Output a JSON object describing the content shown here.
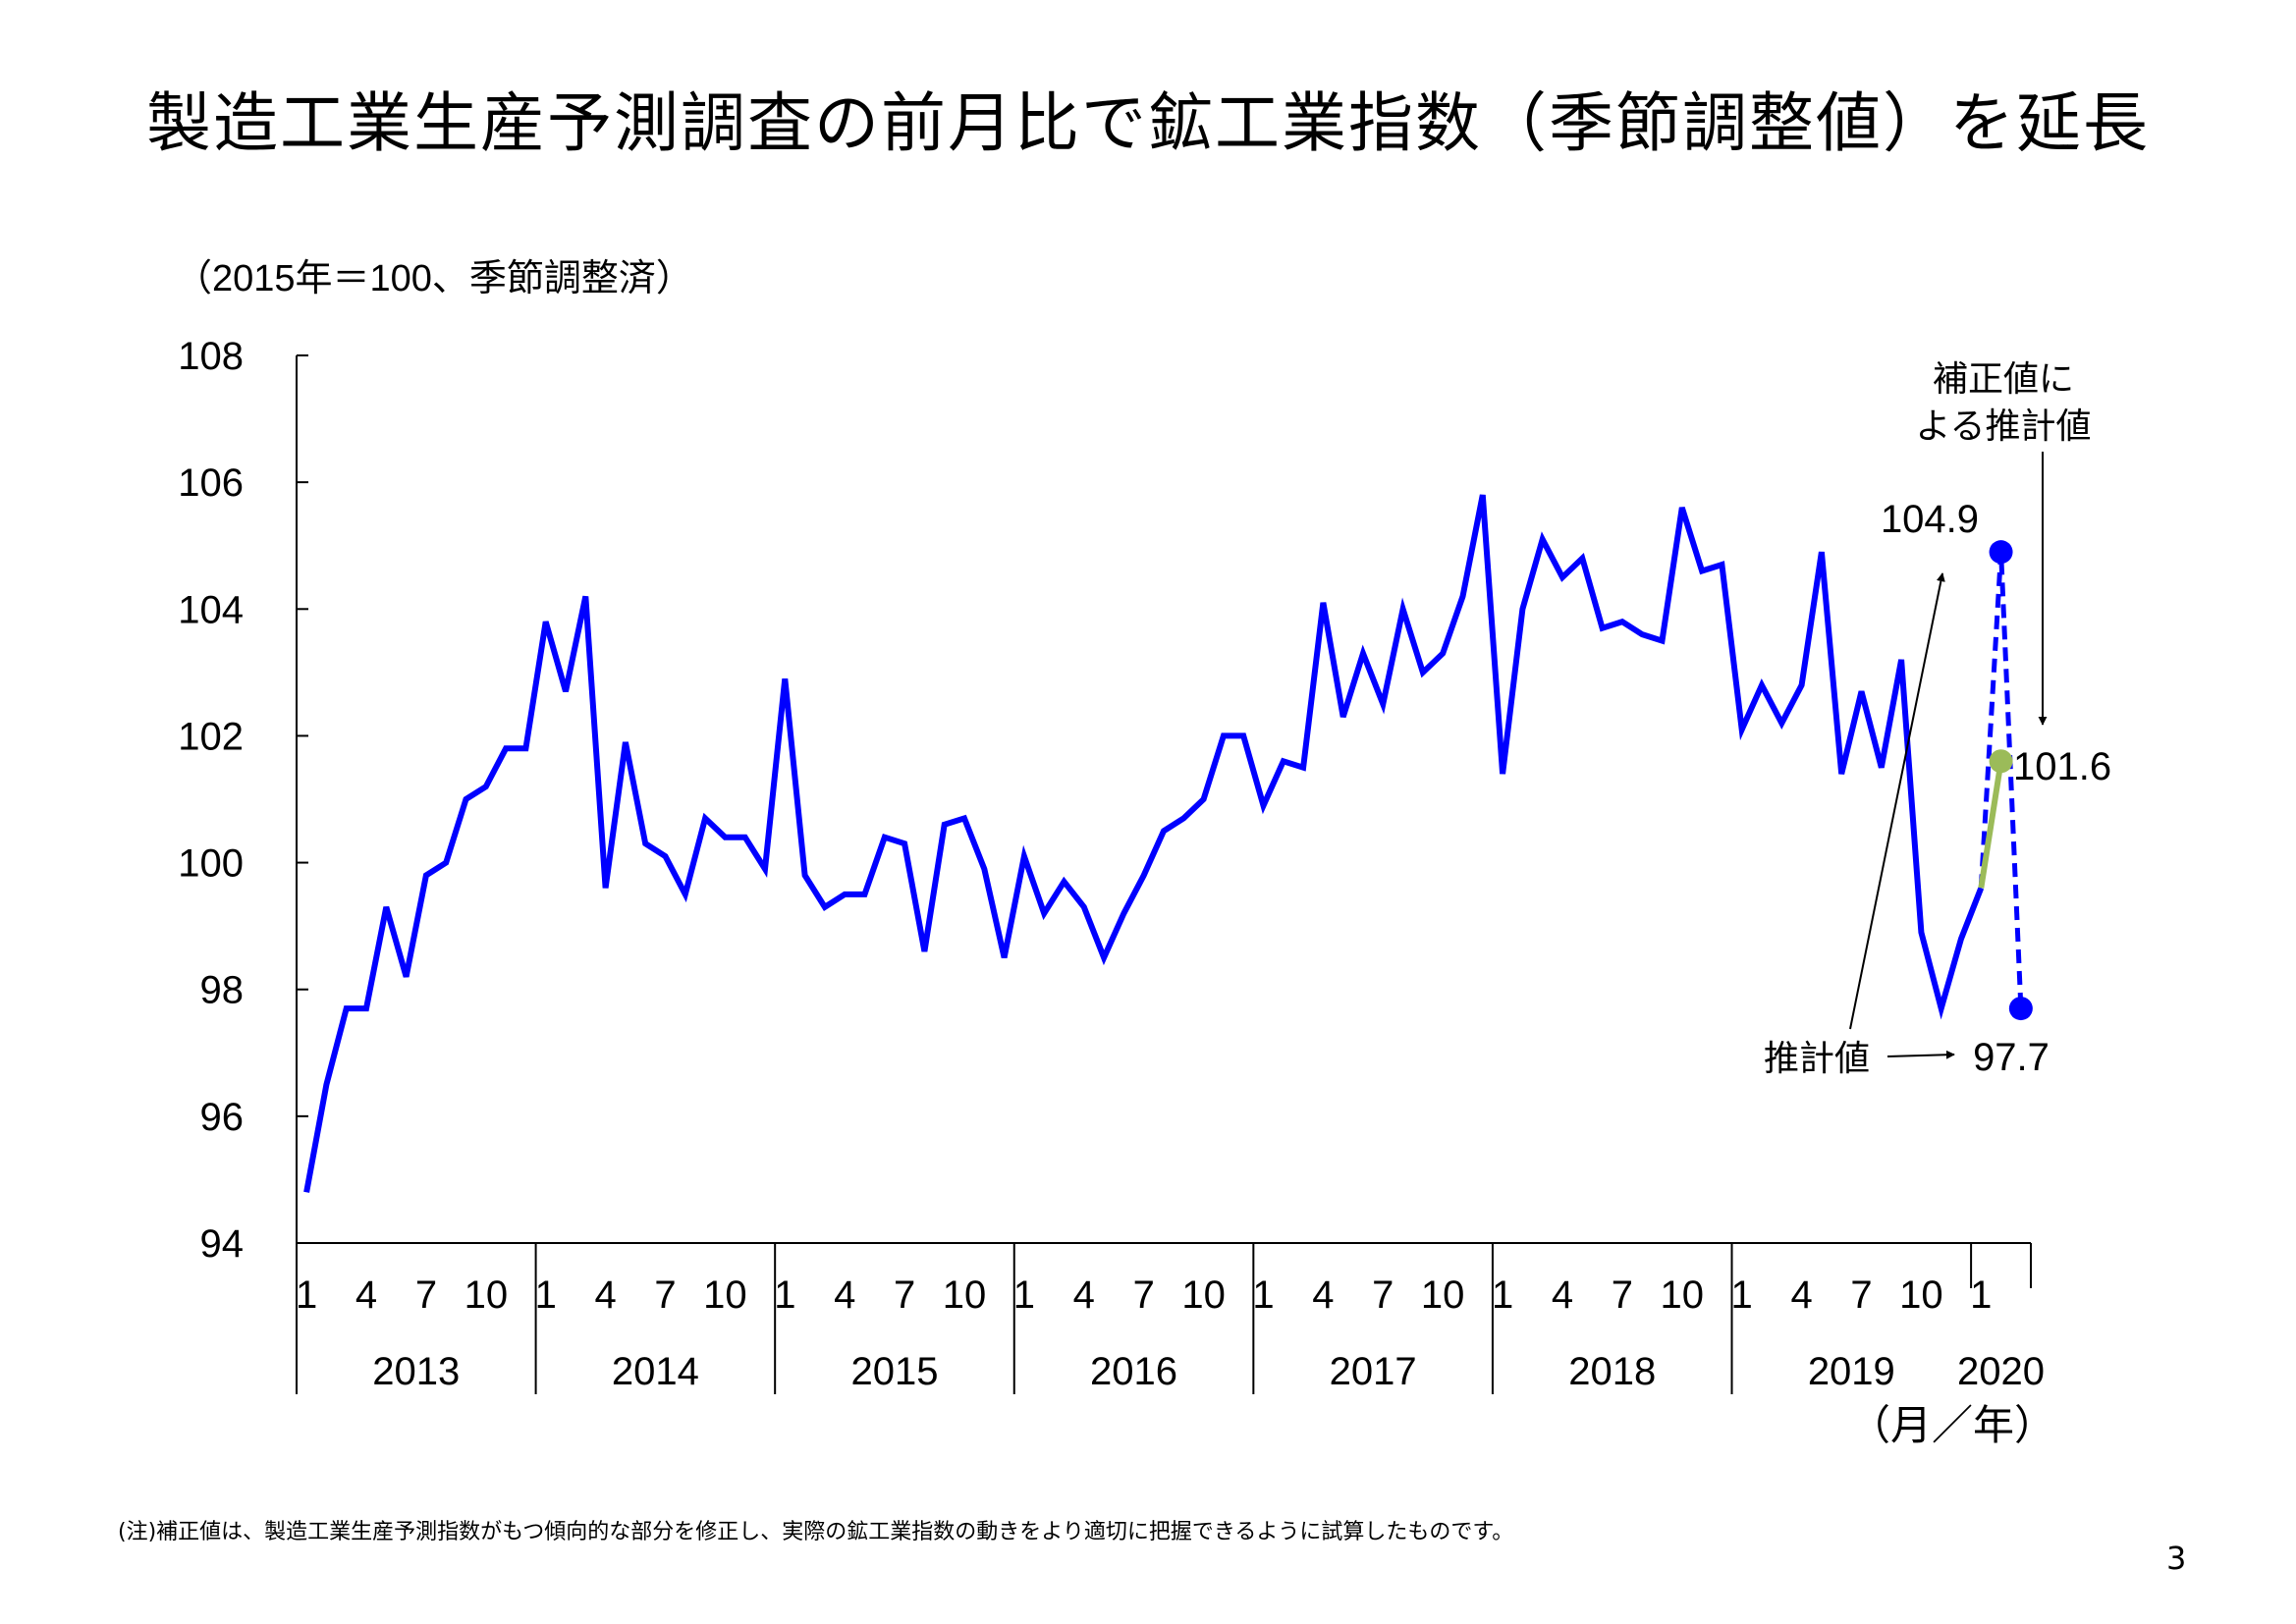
{
  "title": "製造工業生産予測調査の前月比で鉱工業指数（季節調整値）を延長",
  "footnote": "(注)補正値は、製造工業生産予測指数がもつ傾向的な部分を修正し、実際の鉱工業指数の動きをより適切に把握できるように試算したものです。",
  "page_number": "3",
  "chart_data": {
    "type": "line",
    "unit_label": "（2015年＝100、季節調整済）",
    "xlabel": "（月／年）",
    "ylim": [
      94,
      108
    ],
    "yticks": [
      94,
      96,
      98,
      100,
      102,
      104,
      106,
      108
    ],
    "month_tick_labels": [
      "1",
      "4",
      "7",
      "10"
    ],
    "years": [
      "2013",
      "2014",
      "2015",
      "2016",
      "2017",
      "2018",
      "2019",
      "2020"
    ],
    "grid": false,
    "colors": {
      "actual": "#0000ff",
      "forecast": "#0000ff",
      "corrected": "#9bbb59"
    },
    "series": [
      {
        "role": "actual",
        "start": "2013-01",
        "values": [
          94.8,
          96.5,
          97.7,
          97.7,
          99.3,
          98.2,
          99.8,
          100.0,
          101.0,
          101.2,
          101.8,
          101.8,
          103.8,
          102.7,
          104.2,
          99.6,
          101.9,
          100.3,
          100.1,
          99.5,
          100.7,
          100.4,
          100.4,
          99.9,
          102.9,
          99.8,
          99.3,
          99.5,
          99.5,
          100.4,
          100.3,
          98.6,
          100.6,
          100.7,
          99.9,
          98.5,
          100.1,
          99.2,
          99.7,
          99.3,
          98.5,
          99.2,
          99.8,
          100.5,
          100.7,
          101.0,
          102.0,
          102.0,
          100.9,
          101.6,
          101.5,
          104.1,
          102.3,
          103.3,
          102.5,
          104.0,
          103.0,
          103.3,
          104.2,
          105.8,
          101.4,
          104.0,
          105.1,
          104.5,
          104.8,
          103.7,
          103.8,
          103.6,
          103.5,
          105.6,
          104.6,
          104.7,
          102.1,
          102.8,
          102.2,
          102.8,
          104.9,
          101.4,
          102.7,
          101.5,
          103.2,
          98.9,
          97.7,
          98.8,
          99.6
        ]
      },
      {
        "role": "forecast",
        "points": [
          {
            "x": "2020-01",
            "y": 99.6
          },
          {
            "x": "2020-02",
            "y": 104.9
          },
          {
            "x": "2020-03",
            "y": 97.7
          }
        ]
      },
      {
        "role": "corrected",
        "points": [
          {
            "x": "2020-01",
            "y": 99.6
          },
          {
            "x": "2020-02",
            "y": 101.6
          }
        ]
      }
    ],
    "annotations": {
      "forecast_feb_value": "104.9",
      "corrected_feb_value": "101.6",
      "forecast_mar_value": "97.7",
      "estimate_label": "推計値",
      "corrected_label_line1": "補正値に",
      "corrected_label_line2": "よる推計値"
    }
  }
}
